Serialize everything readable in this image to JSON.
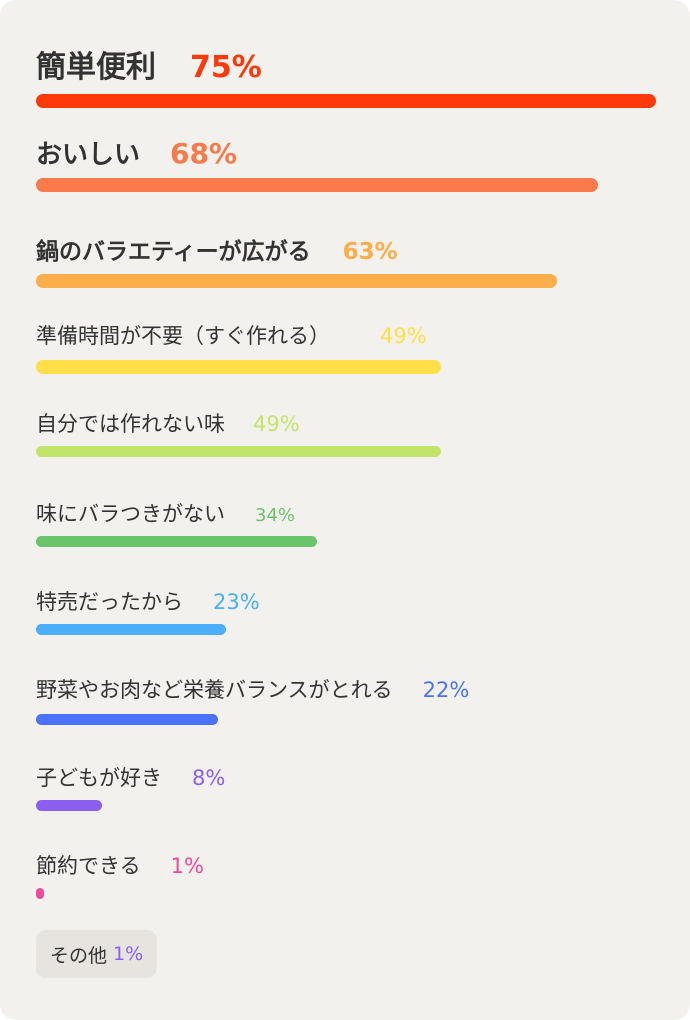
{
  "chart_data": {
    "type": "bar",
    "orientation": "horizontal",
    "unit": "%",
    "xlim": [
      0,
      75
    ],
    "categories": [
      "簡単便利",
      "おいしい",
      "鍋のバラエティーが広がる",
      "準備時間が不要（すぐ作れる）",
      "自分では作れない味",
      "味にバラつきがない",
      "特売だったから",
      "野菜やお肉など栄養バランスがとれる",
      "子どもが好き",
      "節約できる"
    ],
    "values": [
      75,
      68,
      63,
      49,
      49,
      34,
      23,
      22,
      8,
      1
    ],
    "value_labels": [
      "75%",
      "68%",
      "63%",
      "49%",
      "49%",
      "34%",
      "23%",
      "22%",
      "8%",
      "1%"
    ],
    "colors": [
      "#ff3a0a",
      "#f97a4a",
      "#fbae4a",
      "#fedf4a",
      "#c3e46a",
      "#6ac46a",
      "#4aaef8",
      "#4a72f8",
      "#8c5ef0",
      "#f04a9a"
    ],
    "other": {
      "label": "その他",
      "value": 1,
      "value_label": "1%",
      "color": "#8c5ef0"
    }
  }
}
